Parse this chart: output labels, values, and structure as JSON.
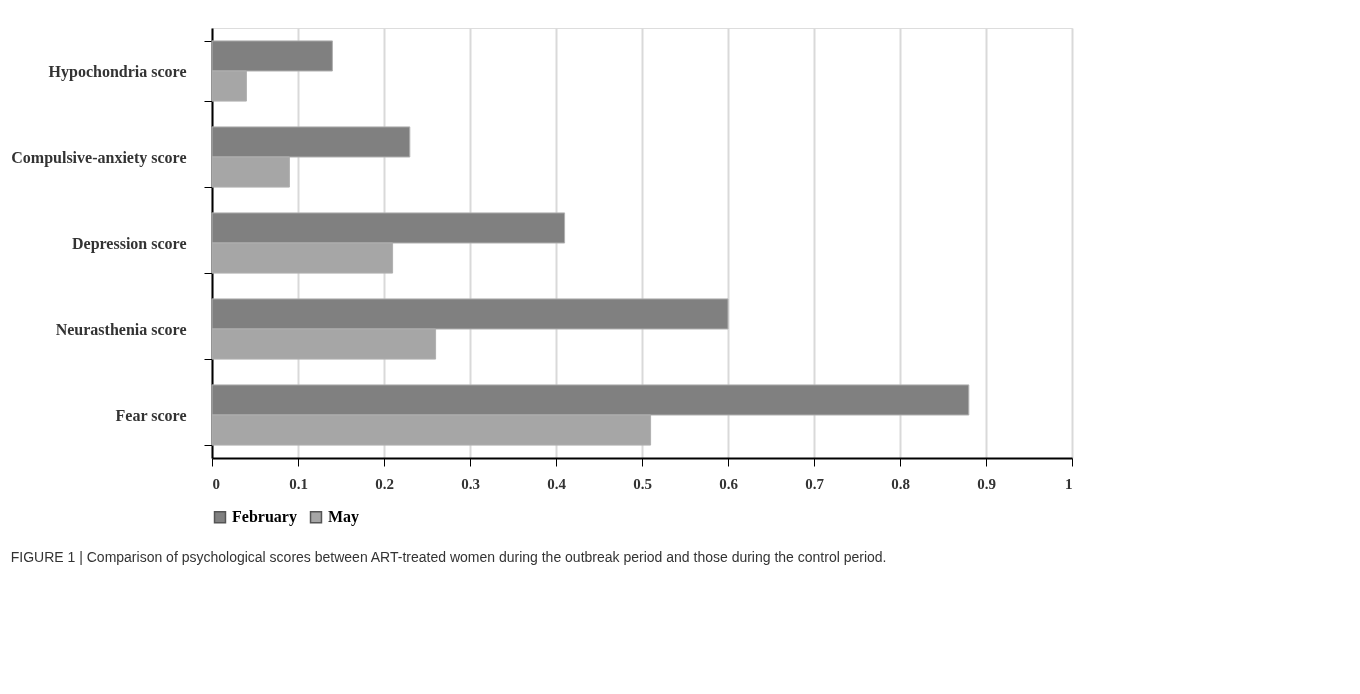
{
  "chart_data": {
    "type": "bar",
    "orientation": "horizontal",
    "categories": [
      "Hypochondria score",
      "Compulsive-anxiety score",
      "Depression score",
      "Neurasthenia score",
      "Fear score"
    ],
    "series": [
      {
        "name": "February",
        "color": "#808080",
        "values": [
          0.14,
          0.23,
          0.41,
          0.6,
          0.88
        ]
      },
      {
        "name": "May",
        "color": "#a6a6a6",
        "values": [
          0.04,
          0.09,
          0.21,
          0.26,
          0.51
        ]
      }
    ],
    "xlim": [
      0,
      1
    ],
    "xticks": [
      0,
      0.1,
      0.2,
      0.3,
      0.4,
      0.5,
      0.6,
      0.7,
      0.8,
      0.9,
      1
    ],
    "grid": "x",
    "legend": "bottom",
    "annotations": [
      "FIGURE 1 | Comparison of psychological scores between ART-treated women during the outbreak period and those during the control period."
    ]
  }
}
